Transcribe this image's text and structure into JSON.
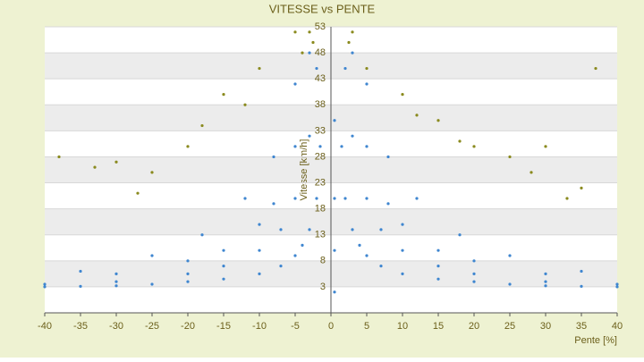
{
  "chart_data": {
    "type": "scatter",
    "title": "VITESSE vs PENTE",
    "xlabel": "Pente [%]",
    "ylabel": "Vitesse [km/h]",
    "xlim": [
      -40,
      40
    ],
    "xticks": [
      -40,
      -35,
      -30,
      -25,
      -20,
      -15,
      -10,
      -5,
      0,
      5,
      10,
      15,
      20,
      25,
      30,
      35,
      40
    ],
    "ylim": [
      -2,
      53
    ],
    "yticks": [
      3,
      8,
      13,
      18,
      23,
      28,
      33,
      38,
      43,
      48,
      53
    ],
    "grid": true,
    "series": [
      {
        "color": "#3f86d0",
        "x": [
          1.5,
          2,
          3,
          4,
          5,
          7,
          10,
          15,
          20,
          25,
          30,
          35,
          40,
          -1.5,
          -2,
          -3,
          -4,
          -5,
          -7,
          -10,
          -15,
          -20,
          -25,
          -30,
          -35,
          -40,
          2,
          3,
          5,
          7,
          10,
          15,
          20,
          30,
          40,
          -2,
          -3,
          -5,
          -7,
          -10,
          -15,
          -20,
          -30,
          -40,
          3,
          5,
          8,
          10,
          15,
          20,
          30,
          -3,
          -5,
          -8,
          -10,
          -15,
          -20,
          -30,
          5,
          8,
          12,
          18,
          25,
          35,
          -5,
          -8,
          -12,
          -18,
          -25,
          -35,
          0.5,
          0.5,
          0.5,
          0.5
        ],
        "values": [
          30,
          20,
          14,
          11,
          9,
          7,
          5.5,
          4.5,
          4,
          3.5,
          3.2,
          3.1,
          3,
          30,
          20,
          14,
          11,
          9,
          7,
          5.5,
          4.5,
          4,
          3.5,
          3.2,
          3.1,
          3,
          45,
          32,
          20,
          14,
          10,
          7,
          5.5,
          4,
          3.5,
          45,
          32,
          20,
          14,
          10,
          7,
          5.5,
          4,
          3.5,
          48,
          30,
          19,
          15,
          10,
          8,
          5.5,
          48,
          30,
          19,
          15,
          10,
          8,
          5.5,
          42,
          28,
          20,
          13,
          9,
          6,
          42,
          28,
          20,
          13,
          9,
          6,
          2,
          10,
          20,
          35
        ]
      },
      {
        "color": "#8a8a1e",
        "x": [
          -5,
          -3,
          -4,
          -10,
          -15,
          -20,
          -25,
          -30,
          -38,
          -12,
          -18,
          -27,
          -33,
          3,
          5,
          10,
          15,
          20,
          25,
          30,
          35,
          37,
          12,
          18,
          28,
          33,
          -2.5,
          2.5
        ],
        "values": [
          52,
          52,
          48,
          45,
          40,
          30,
          25,
          27,
          28,
          38,
          34,
          21,
          26,
          52,
          45,
          40,
          35,
          30,
          28,
          30,
          22,
          45,
          36,
          31,
          25,
          20,
          50,
          50
        ]
      }
    ]
  }
}
